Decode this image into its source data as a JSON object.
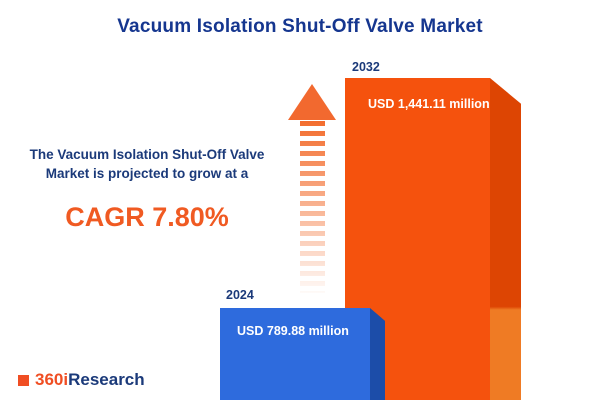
{
  "title": "Vacuum Isolation Shut-Off Valve Market",
  "description": "The Vacuum Isolation Shut-Off Valve Market is projected to grow at a",
  "cagr_label": "CAGR 7.80%",
  "logo": {
    "prefix": "360i",
    "suffix": "Research"
  },
  "colors": {
    "title_navy": "#15368f",
    "text_navy": "#1b3a7a",
    "accent_orange": "#f05a22",
    "bar_2024_blue": "#2e6bdd",
    "bar_2024_side_blue": "#1c4da9",
    "bar_2032_orange": "#f5520d",
    "bar_2032_side_orange": "#dd4503"
  },
  "chart_data": {
    "type": "bar",
    "title": "Vacuum Isolation Shut-Off Valve Market",
    "categories": [
      "2024",
      "2032"
    ],
    "values": [
      789.88,
      1441.11
    ],
    "value_labels": [
      "USD 789.88 million",
      "USD 1,441.11 million"
    ],
    "unit": "USD million",
    "cagr_percent": 7.8,
    "orientation": "vertical",
    "grid": false,
    "legend": false,
    "annotations": [
      "CAGR 7.80%"
    ]
  }
}
